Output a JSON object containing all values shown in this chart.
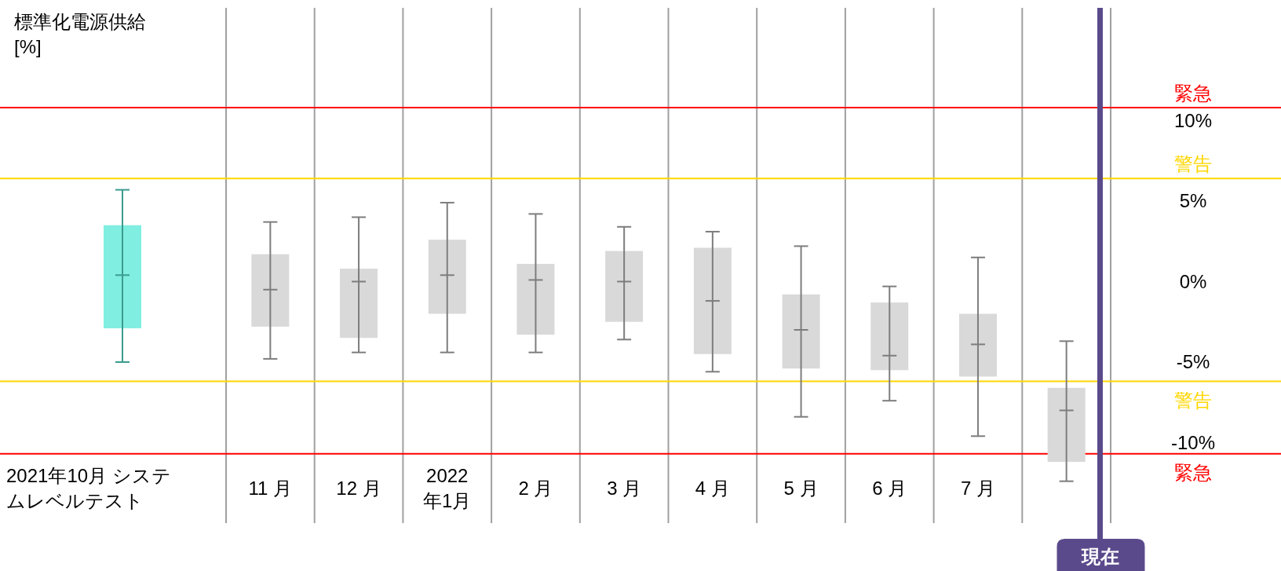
{
  "chart_data": {
    "type": "box",
    "ylabel": "標準化電源供給 [%]",
    "categories": [
      "2021年10月 システムレベルテスト",
      "11 月",
      "12 月",
      "2022 年1月",
      "2 月",
      "3 月",
      "4 月",
      "5 月",
      "6 月",
      "7 月",
      null
    ],
    "series": [
      {
        "color": "#80eee0",
        "boxes": [
          {
            "low": -5.0,
            "q1": -2.9,
            "median": 0.4,
            "q3": 3.5,
            "high": 5.7
          },
          null,
          null,
          null,
          null,
          null,
          null,
          null,
          null,
          null,
          null
        ]
      },
      {
        "color": "#d9d9d9",
        "boxes": [
          null,
          {
            "low": -4.8,
            "q1": -2.8,
            "median": -0.5,
            "q3": 1.7,
            "high": 3.7
          },
          {
            "low": -4.4,
            "q1": -3.5,
            "median": 0.0,
            "q3": 0.8,
            "high": 4.0
          },
          {
            "low": -4.4,
            "q1": -2.0,
            "median": 0.4,
            "q3": 2.6,
            "high": 4.9
          },
          {
            "low": -4.4,
            "q1": -3.3,
            "median": 0.1,
            "q3": 1.1,
            "high": 4.2
          },
          {
            "low": -3.6,
            "q1": -2.5,
            "median": 0.0,
            "q3": 1.9,
            "high": 3.4
          },
          {
            "low": -5.6,
            "q1": -4.5,
            "median": -1.2,
            "q3": 2.1,
            "high": 3.1
          },
          {
            "low": -8.4,
            "q1": -5.4,
            "median": -3.0,
            "q3": -0.8,
            "high": 2.2
          },
          {
            "low": -7.4,
            "q1": -5.5,
            "median": -4.6,
            "q3": -1.3,
            "high": -0.3
          },
          {
            "low": -9.6,
            "q1": -5.9,
            "median": -3.9,
            "q3": -2.0,
            "high": 1.5
          },
          {
            "low": -12.4,
            "q1": -11.2,
            "median": -8.0,
            "q3": -6.6,
            "high": -3.7
          }
        ]
      }
    ],
    "ylim": [
      -15,
      17
    ],
    "yticks": [
      {
        "value": 10,
        "label": "10%"
      },
      {
        "value": 5,
        "label": "5%"
      },
      {
        "value": 0,
        "label": "0%"
      },
      {
        "value": -5,
        "label": "-5%"
      },
      {
        "value": -10,
        "label": "-10%"
      }
    ],
    "grid": "x",
    "ref_lines": [
      {
        "axis": "y",
        "value": 10.8,
        "label": "緊急",
        "color": "#ff0000"
      },
      {
        "axis": "y",
        "value": 6.4,
        "label": "警告",
        "color": "#ffd700"
      },
      {
        "axis": "y",
        "value": -6.2,
        "label": "警告",
        "color": "#ffd700"
      },
      {
        "axis": "y",
        "value": -10.7,
        "label": "緊急",
        "color": "#ff0000"
      }
    ],
    "annotations": [
      "現在"
    ]
  }
}
